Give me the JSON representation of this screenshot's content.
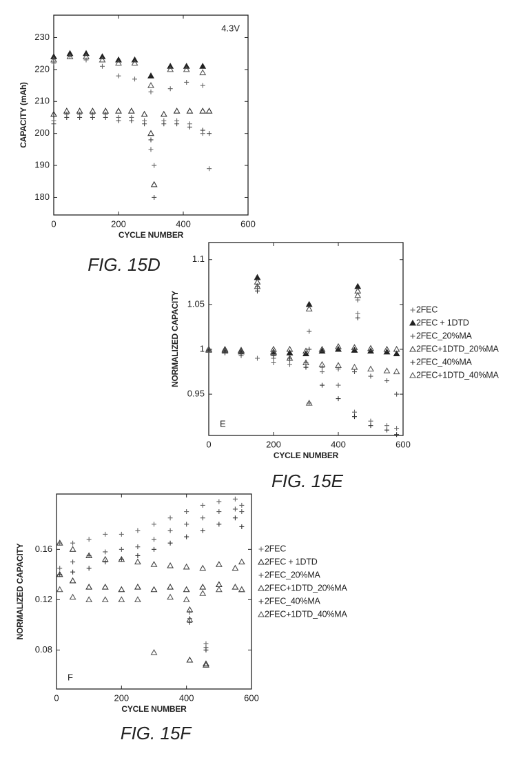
{
  "chart_data": [
    {
      "type": "scatter",
      "caption": "FIG. 15D",
      "annotation": "4.3V",
      "xlabel": "CYCLE NUMBER",
      "ylabel": "CAPACITY (mAh)",
      "xlim": [
        0,
        600
      ],
      "ylim": [
        174.5,
        237
      ],
      "xticks": [
        0,
        200,
        400,
        600
      ],
      "yticks": [
        180,
        190,
        200,
        210,
        220,
        230
      ],
      "series": [
        {
          "marker": "plus",
          "color": "#666",
          "x": [
            0,
            50,
            100,
            150,
            200,
            250,
            300,
            360,
            410,
            460
          ],
          "values": [
            222,
            224,
            223,
            221,
            218,
            217,
            213,
            214,
            216,
            215
          ]
        },
        {
          "marker": "triangle-filled",
          "color": "#222",
          "x": [
            0,
            50,
            100,
            150,
            200,
            250,
            300,
            360,
            410,
            460
          ],
          "values": [
            224,
            225,
            225,
            224,
            223,
            223,
            218,
            221,
            221,
            221
          ]
        },
        {
          "marker": "triangle",
          "color": "#555",
          "x": [
            0,
            50,
            100,
            150,
            200,
            250,
            300,
            360,
            410,
            460
          ],
          "values": [
            223,
            224,
            224,
            223,
            222,
            222,
            215,
            220,
            220,
            219
          ]
        },
        {
          "marker": "plus",
          "color": "#444",
          "x": [
            0,
            40,
            80,
            120,
            160,
            200,
            240,
            280,
            300,
            310,
            340,
            380,
            420,
            460,
            480
          ],
          "values": [
            203,
            205,
            205,
            205,
            205,
            204,
            204,
            203,
            198,
            180,
            203,
            203,
            202,
            201,
            200
          ]
        },
        {
          "marker": "plus",
          "color": "#666",
          "x": [
            0,
            40,
            80,
            120,
            160,
            200,
            240,
            280,
            300,
            310,
            340,
            380,
            420,
            460,
            480
          ],
          "values": [
            204,
            206,
            206,
            206,
            206,
            205,
            205,
            204,
            195,
            190,
            204,
            204,
            203,
            200,
            189
          ]
        },
        {
          "marker": "triangle",
          "color": "#333",
          "x": [
            0,
            40,
            80,
            120,
            160,
            200,
            240,
            280,
            300,
            310,
            340,
            380,
            420,
            460,
            480
          ],
          "values": [
            206,
            207,
            207,
            207,
            207,
            207,
            207,
            206,
            200,
            184,
            206,
            207,
            207,
            207,
            207
          ]
        }
      ]
    },
    {
      "type": "scatter",
      "caption": "FIG. 15E",
      "panel_label": "E",
      "xlabel": "CYCLE NUMBER",
      "ylabel": "NORMALIZED CAPACITY",
      "legend": "right",
      "xlim": [
        0,
        600
      ],
      "ylim": [
        0.904,
        1.119
      ],
      "xticks": [
        0,
        200,
        400,
        600
      ],
      "yticks": [
        0.95,
        1,
        1.05,
        1.1
      ],
      "series": [
        {
          "name": "2FEC",
          "marker": "plus",
          "color": "#666",
          "x": [
            0,
            50,
            100,
            150,
            200,
            250,
            300,
            310,
            350,
            400,
            450,
            460,
            500,
            550,
            580
          ],
          "values": [
            1.0,
            0.998,
            0.995,
            0.99,
            0.985,
            0.983,
            0.98,
            0.94,
            0.975,
            0.96,
            0.93,
            1.04,
            0.92,
            0.915,
            0.912
          ]
        },
        {
          "name": "2FEC + 1DTD",
          "marker": "triangle-filled",
          "color": "#222",
          "x": [
            0,
            50,
            100,
            150,
            200,
            250,
            300,
            310,
            350,
            400,
            450,
            460,
            500,
            550,
            580
          ],
          "values": [
            1.0,
            0.999,
            0.998,
            1.08,
            0.997,
            0.996,
            0.995,
            1.05,
            0.998,
            1.0,
            0.999,
            1.07,
            0.998,
            0.997,
            0.995
          ]
        },
        {
          "name": "2FEC_20%MA",
          "marker": "plus",
          "color": "#555",
          "x": [
            0,
            50,
            100,
            150,
            200,
            250,
            300,
            310,
            350,
            400,
            450,
            460,
            500,
            550,
            580
          ],
          "values": [
            0.999,
            0.997,
            0.993,
            1.07,
            0.99,
            0.988,
            0.985,
            1.02,
            0.98,
            0.978,
            0.975,
            1.055,
            0.97,
            0.965,
            0.95
          ]
        },
        {
          "name": "2FEC+1DTD_20%MA",
          "marker": "triangle",
          "color": "#444",
          "x": [
            0,
            50,
            100,
            150,
            200,
            250,
            300,
            310,
            350,
            400,
            450,
            460,
            500,
            550,
            580
          ],
          "values": [
            1.0,
            1.0,
            0.999,
            1.075,
            1.0,
            1.0,
            0.998,
            1.045,
            1.0,
            1.003,
            1.002,
            1.065,
            1.001,
            1.0,
            1.0
          ]
        },
        {
          "name": "2FEC_40%MA",
          "marker": "plus",
          "color": "#333",
          "x": [
            0,
            50,
            100,
            150,
            200,
            250,
            300,
            310,
            350,
            400,
            450,
            460,
            500,
            550,
            580
          ],
          "values": [
            0.998,
            0.996,
            0.995,
            1.065,
            0.993,
            0.99,
            0.98,
            1.0,
            0.96,
            0.945,
            0.925,
            1.035,
            0.915,
            0.91,
            0.905
          ]
        },
        {
          "name": "2FEC+1DTD_40%MA",
          "marker": "triangle",
          "color": "#555",
          "x": [
            0,
            50,
            100,
            150,
            200,
            250,
            300,
            310,
            350,
            400,
            450,
            460,
            500,
            550,
            580
          ],
          "values": [
            0.999,
            0.998,
            0.997,
            1.07,
            0.996,
            0.99,
            0.985,
            0.94,
            0.983,
            0.982,
            0.98,
            1.06,
            0.978,
            0.976,
            0.975
          ]
        }
      ]
    },
    {
      "type": "scatter",
      "caption": "FIG. 15F",
      "panel_label": "F",
      "xlabel": "CYCLE NUMBER",
      "ylabel": "NORMALIZED CAPACITY",
      "legend": "right",
      "xlim": [
        0,
        600
      ],
      "ylim": [
        0.049,
        0.204
      ],
      "xticks": [
        0,
        200,
        400,
        600
      ],
      "yticks": [
        0.08,
        0.12,
        0.16
      ],
      "series": [
        {
          "name": "2FEC",
          "marker": "plus",
          "color": "#666",
          "x": [
            10,
            50,
            100,
            150,
            200,
            250,
            300,
            350,
            400,
            410,
            450,
            460,
            500,
            550,
            570
          ],
          "values": [
            0.165,
            0.165,
            0.168,
            0.172,
            0.172,
            0.175,
            0.18,
            0.185,
            0.19,
            0.11,
            0.195,
            0.085,
            0.198,
            0.2,
            0.195
          ]
        },
        {
          "name": "2FEC + 1DTD",
          "marker": "triangle",
          "color": "#333",
          "x": [
            10,
            50,
            100,
            150,
            200,
            250,
            300,
            350,
            400,
            410,
            450,
            460,
            500,
            550,
            570
          ],
          "values": [
            0.14,
            0.135,
            0.13,
            0.13,
            0.128,
            0.13,
            0.128,
            0.13,
            0.128,
            0.072,
            0.13,
            0.069,
            0.132,
            0.13,
            0.128
          ]
        },
        {
          "name": "2FEC_20%MA",
          "marker": "plus",
          "color": "#555",
          "x": [
            10,
            50,
            100,
            150,
            200,
            250,
            300,
            350,
            400,
            410,
            450,
            460,
            500,
            550,
            570
          ],
          "values": [
            0.145,
            0.15,
            0.155,
            0.158,
            0.16,
            0.162,
            0.168,
            0.175,
            0.18,
            0.105,
            0.185,
            0.082,
            0.19,
            0.192,
            0.19
          ]
        },
        {
          "name": "2FEC+1DTD_20%MA",
          "marker": "triangle",
          "color": "#444",
          "x": [
            10,
            50,
            100,
            150,
            200,
            250,
            300,
            350,
            400,
            410,
            450,
            460,
            500,
            550,
            570
          ],
          "values": [
            0.165,
            0.16,
            0.155,
            0.152,
            0.152,
            0.15,
            0.148,
            0.147,
            0.146,
            0.112,
            0.145,
            0.068,
            0.148,
            0.145,
            0.15
          ]
        },
        {
          "name": "2FEC_40%MA",
          "marker": "plus",
          "color": "#333",
          "x": [
            10,
            50,
            100,
            150,
            200,
            250,
            300,
            350,
            400,
            410,
            450,
            460,
            500,
            550,
            570
          ],
          "values": [
            0.14,
            0.142,
            0.145,
            0.15,
            0.152,
            0.155,
            0.16,
            0.165,
            0.17,
            0.102,
            0.175,
            0.08,
            0.18,
            0.185,
            0.178
          ]
        },
        {
          "name": "2FEC+1DTD_40%MA",
          "marker": "triangle",
          "color": "#555",
          "x": [
            10,
            50,
            100,
            150,
            200,
            250,
            300,
            350,
            400,
            410,
            450,
            460,
            500,
            550,
            570
          ],
          "values": [
            0.128,
            0.122,
            0.12,
            0.12,
            0.12,
            0.12,
            0.078,
            0.122,
            0.12,
            0.104,
            0.125,
            0.068,
            0.128,
            0.13,
            0.128
          ]
        }
      ]
    }
  ]
}
